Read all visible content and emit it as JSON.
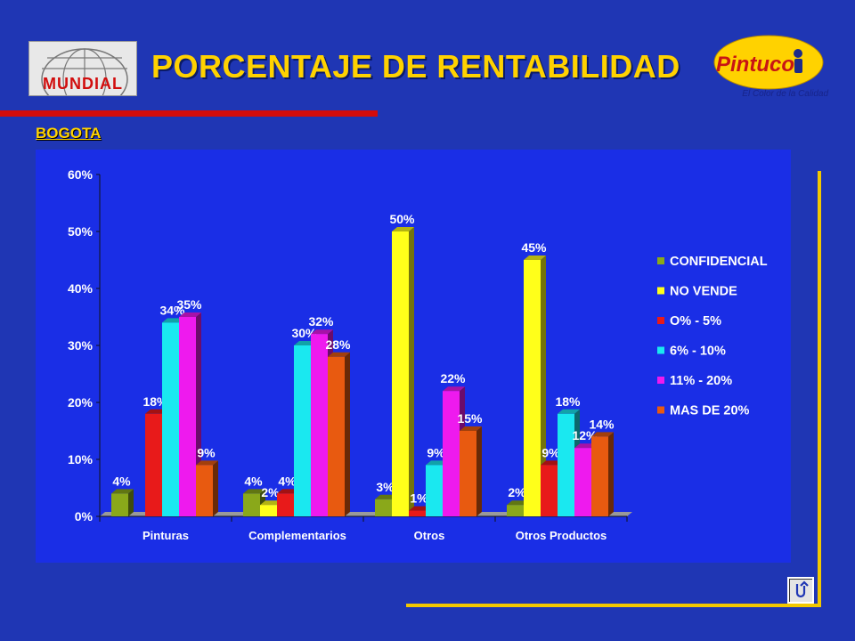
{
  "header": {
    "title": "PORCENTAJE DE RENTABILIDAD",
    "left_logo_text": "MUNDIAL",
    "right_logo_text": "Pintuco",
    "right_logo_tagline": "El Color de la Calidad"
  },
  "region": "BOGOTA",
  "colors": {
    "background": "#1f36b4",
    "chart_panel": "#1a2ee6",
    "title": "#ffd200",
    "accent_red": "#d40c0c",
    "frame": "#f2c800"
  },
  "chart_data": {
    "type": "bar",
    "title": "",
    "xlabel": "",
    "ylabel": "",
    "ylim": [
      0,
      60
    ],
    "yticks": [
      "0%",
      "10%",
      "20%",
      "30%",
      "40%",
      "50%",
      "60%"
    ],
    "categories": [
      "Pinturas",
      "Complementarios",
      "Otros",
      "Otros Productos"
    ],
    "legend_position": "right",
    "grid": false,
    "series": [
      {
        "name": "CONFIDENCIAL",
        "color": "#8aa81a",
        "values": [
          4,
          4,
          3,
          2
        ],
        "labels": [
          "4%",
          "4%",
          "3%",
          "2%"
        ]
      },
      {
        "name": "NO VENDE",
        "color": "#ffff1a",
        "values": [
          null,
          2,
          50,
          45
        ],
        "labels": [
          "",
          "2%",
          "50%",
          "45%"
        ]
      },
      {
        "name": "O% - 5%",
        "color": "#e81a1a",
        "values": [
          18,
          4,
          1,
          9
        ],
        "labels": [
          "18%",
          "4%",
          "1%",
          "9%"
        ]
      },
      {
        "name": "6% - 10%",
        "color": "#1ae8f0",
        "values": [
          34,
          30,
          9,
          18
        ],
        "labels": [
          "34%",
          "30%",
          "9%",
          "18%"
        ]
      },
      {
        "name": "11% - 20%",
        "color": "#ee1aee",
        "values": [
          35,
          32,
          22,
          12
        ],
        "labels": [
          "35%",
          "32%",
          "22%",
          "12%"
        ]
      },
      {
        "name": "MAS DE 20%",
        "color": "#e85a10",
        "values": [
          9,
          28,
          15,
          14
        ],
        "labels": [
          "9%",
          "28%",
          "15%",
          "14%"
        ]
      }
    ]
  },
  "nav": {
    "return_icon": "return-arrow-icon"
  }
}
